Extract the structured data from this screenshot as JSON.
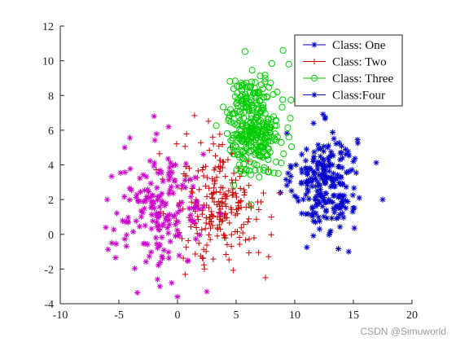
{
  "chart_data": {
    "type": "scatter",
    "title": "",
    "xlabel": "",
    "ylabel": "",
    "xlim": [
      -10,
      20
    ],
    "ylim": [
      -4,
      12
    ],
    "x_ticks": [
      -10,
      -5,
      0,
      5,
      10,
      15,
      20
    ],
    "y_ticks": [
      -4,
      -2,
      0,
      2,
      4,
      6,
      8,
      10,
      12
    ],
    "grid": false,
    "legend_position": "top-right",
    "series": [
      {
        "name": "Class: One",
        "marker": "asterisk",
        "color": "#0000cc",
        "cluster": {
          "center": [
            12.6,
            3.0
          ],
          "spread": [
            1.35,
            1.45
          ],
          "count": 240
        },
        "points": [
          [
            17.5,
            2.0
          ],
          [
            15.5,
            2.1
          ],
          [
            14.6,
            -1.0
          ],
          [
            11.6,
            6.4
          ],
          [
            10.6,
            4.6
          ],
          [
            10.1,
            4.0
          ],
          [
            13.0,
            0.1
          ],
          [
            15.0,
            4.2
          ]
        ]
      },
      {
        "name": "Class: Two",
        "marker": "plus",
        "color": "#cc0000",
        "cluster": {
          "center": [
            3.6,
            1.8
          ],
          "spread": [
            2.0,
            1.8
          ],
          "count": 230
        },
        "points": [
          [
            1.0,
            3.8
          ],
          [
            1.5,
            1.8
          ],
          [
            4.3,
            4.3
          ],
          [
            5.2,
            3.8
          ],
          [
            7.5,
            -2.5
          ],
          [
            2.3,
            -2.0
          ],
          [
            3.0,
            5.6
          ],
          [
            8.0,
            1.0
          ]
        ]
      },
      {
        "name": "Class: Three",
        "marker": "circle",
        "color": "#00cc00",
        "cluster": {
          "center": [
            6.5,
            6.3
          ],
          "spread": [
            1.1,
            1.4
          ],
          "count": 320
        },
        "points": [
          [
            9.0,
            10.6
          ],
          [
            9.5,
            9.8
          ],
          [
            8.5,
            8.2
          ],
          [
            7.7,
            3.6
          ],
          [
            9.5,
            5.6
          ],
          [
            8.6,
            3.5
          ],
          [
            5.5,
            5.7
          ],
          [
            7.0,
            8.0
          ]
        ]
      },
      {
        "name": "Class:Four",
        "marker": "asterisk",
        "color": "#cc00cc",
        "cluster": {
          "center": [
            -1.5,
            1.4
          ],
          "spread": [
            2.0,
            1.7
          ],
          "count": 180
        },
        "points": [
          [
            -4.5,
            5.0
          ],
          [
            -5.6,
            -0.5
          ],
          [
            -6.0,
            2.0
          ],
          [
            -1.5,
            -3.0
          ],
          [
            0.0,
            -3.6
          ],
          [
            -0.5,
            -2.8
          ],
          [
            -2.0,
            6.8
          ],
          [
            2.5,
            -3.3
          ]
        ]
      }
    ]
  },
  "watermark": "CSDN @Simuworld"
}
